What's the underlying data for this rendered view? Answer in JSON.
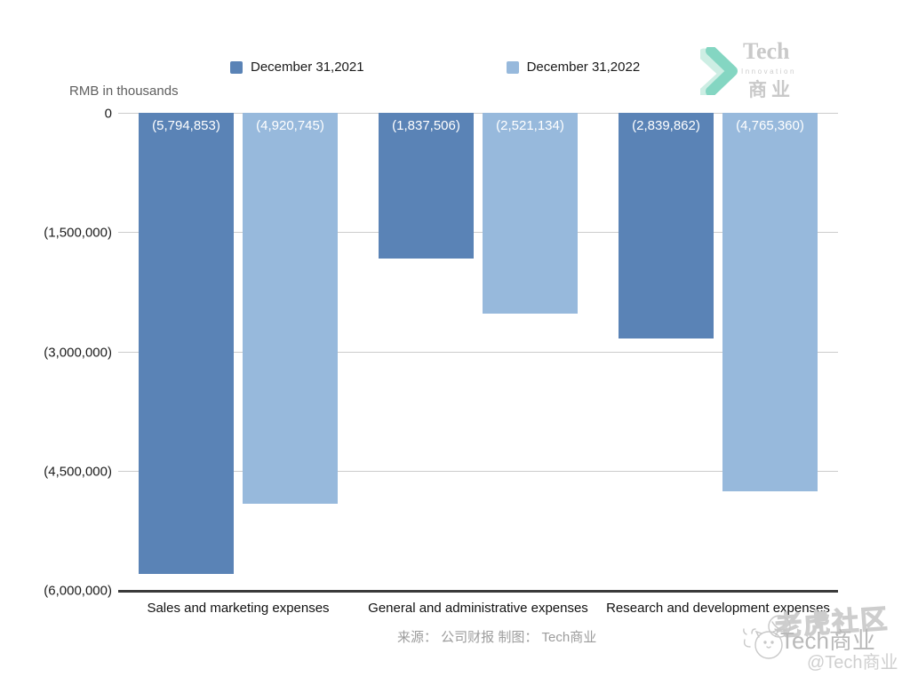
{
  "header": {
    "axis_unit_label": "RMB in thousands"
  },
  "legend": {
    "items": [
      {
        "label": "December 31,2021",
        "color": "#5a83b6"
      },
      {
        "label": "December 31,2022",
        "color": "#97b9dc"
      }
    ]
  },
  "y_axis": {
    "ticks": [
      {
        "label": "0",
        "value": 0
      },
      {
        "label": "(1,500,000)",
        "value": -1500000
      },
      {
        "label": "(3,000,000)",
        "value": -3000000
      },
      {
        "label": "(4,500,000)",
        "value": -4500000
      },
      {
        "label": "(6,000,000)",
        "value": -6000000
      }
    ]
  },
  "chart_data": {
    "type": "bar",
    "orientation": "vertical",
    "title": "",
    "ylabel": "RMB in thousands",
    "ylim": [
      -6000000,
      0
    ],
    "grid": true,
    "legend_position": "top",
    "categories": [
      "Sales and marketing expenses",
      "General and administrative expenses",
      "Research and development expenses"
    ],
    "series": [
      {
        "name": "December 31,2021",
        "color": "#5a83b6",
        "values": [
          -5794853,
          -1837506,
          -2839862
        ],
        "labels": [
          "(5,794,853)",
          "(1,837,506)",
          "(2,839,862)"
        ]
      },
      {
        "name": "December 31,2022",
        "color": "#97b9dc",
        "values": [
          -4920745,
          -2521134,
          -4765360
        ],
        "labels": [
          "(4,920,745)",
          "(2,521,134)",
          "(4,765,360)"
        ]
      }
    ]
  },
  "footer": {
    "credit": "来源： 公司财报 制图： Tech商业"
  },
  "brand_logo": {
    "name": "Tech",
    "subtitle": "Innovation",
    "cn": "商业"
  },
  "watermark": {
    "community": "老虎社区",
    "brand": "Tech商业",
    "handle": "@Tech商业"
  }
}
